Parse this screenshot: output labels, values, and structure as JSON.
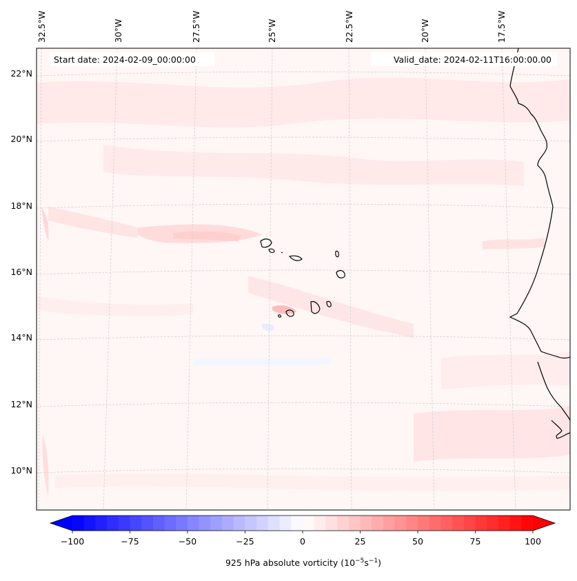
{
  "map": {
    "start_date_label": "Start date: 2024-02-09_00:00:00",
    "valid_date_label": "Valid_date: 2024-02-11T16:00:00.00",
    "lon_labels": [
      "32.5°W",
      "30°W",
      "27.5°W",
      "25°W",
      "22.5°W",
      "20°W",
      "17.5°W"
    ],
    "lat_labels": [
      "22°N",
      "20°N",
      "18°N",
      "16°N",
      "14°N",
      "12°N",
      "10°N"
    ],
    "land_outline_color": "#000000",
    "gridline_color": "#cccccc"
  },
  "colorbar": {
    "label_prefix": "925 hPa absolute vorticity (10",
    "label_exp1": "−5",
    "label_mid": "s",
    "label_exp2": "−1",
    "label_suffix": ")",
    "tick_values": [
      -100,
      -75,
      -50,
      -25,
      0,
      25,
      50,
      75,
      100
    ],
    "tick_labels": [
      "−100",
      "−75",
      "−50",
      "−25",
      "0",
      "25",
      "50",
      "75",
      "100"
    ],
    "min": -100,
    "max": 100,
    "step": 5,
    "low_color": "#0000ff",
    "mid_color": "#ffffff",
    "high_color": "#ff0000"
  }
}
